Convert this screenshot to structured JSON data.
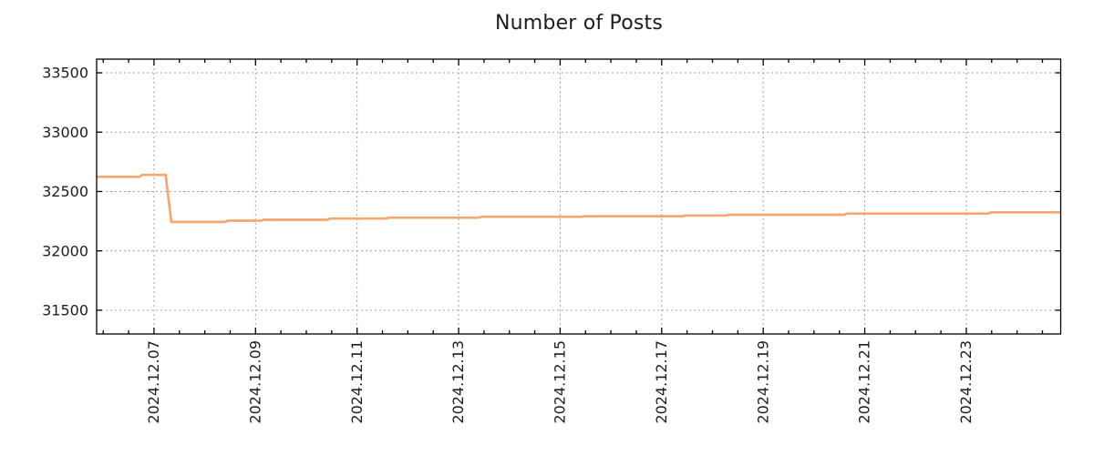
{
  "chart_data": {
    "type": "line",
    "title": "Number of Posts",
    "legend": null,
    "grid": true,
    "colors": {
      "line": "#f6a66e",
      "grid": "#a3a3a3",
      "axis": "#000000",
      "text": "#1e1e1e",
      "background": "#ffffff"
    },
    "x_axis": {
      "unit": "day of December 2024",
      "xlim": [
        5.87,
        24.86
      ],
      "major_tick_positions": [
        7,
        9,
        11,
        13,
        15,
        17,
        19,
        21,
        23
      ],
      "tick_labels": [
        "2024.12.07",
        "2024.12.09",
        "2024.12.11",
        "2024.12.13",
        "2024.12.15",
        "2024.12.17",
        "2024.12.19",
        "2024.12.21",
        "2024.12.23"
      ],
      "minor_tick_step": 0.5
    },
    "y_axis": {
      "ylim": [
        31300,
        33615
      ],
      "tick_positions": [
        31500,
        32000,
        32500,
        33000,
        33500
      ],
      "tick_labels": [
        "31500",
        "32000",
        "32500",
        "33000",
        "33500"
      ]
    },
    "series": [
      {
        "name": "number-of-posts",
        "color": "#f6a66e",
        "points": [
          [
            5.87,
            32624
          ],
          [
            6.71,
            32624
          ],
          [
            6.77,
            32640
          ],
          [
            7.23,
            32640
          ],
          [
            7.34,
            32244
          ],
          [
            8.41,
            32244
          ],
          [
            8.45,
            32254
          ],
          [
            9.11,
            32254
          ],
          [
            9.16,
            32262
          ],
          [
            10.4,
            32262
          ],
          [
            10.47,
            32272
          ],
          [
            11.56,
            32272
          ],
          [
            11.63,
            32280
          ],
          [
            13.39,
            32280
          ],
          [
            13.46,
            32287
          ],
          [
            15.42,
            32287
          ],
          [
            15.49,
            32292
          ],
          [
            17.4,
            32292
          ],
          [
            17.47,
            32298
          ],
          [
            18.25,
            32298
          ],
          [
            18.32,
            32304
          ],
          [
            20.58,
            32304
          ],
          [
            20.66,
            32314
          ],
          [
            23.42,
            32314
          ],
          [
            23.5,
            32325
          ],
          [
            24.86,
            32325
          ]
        ]
      }
    ]
  }
}
